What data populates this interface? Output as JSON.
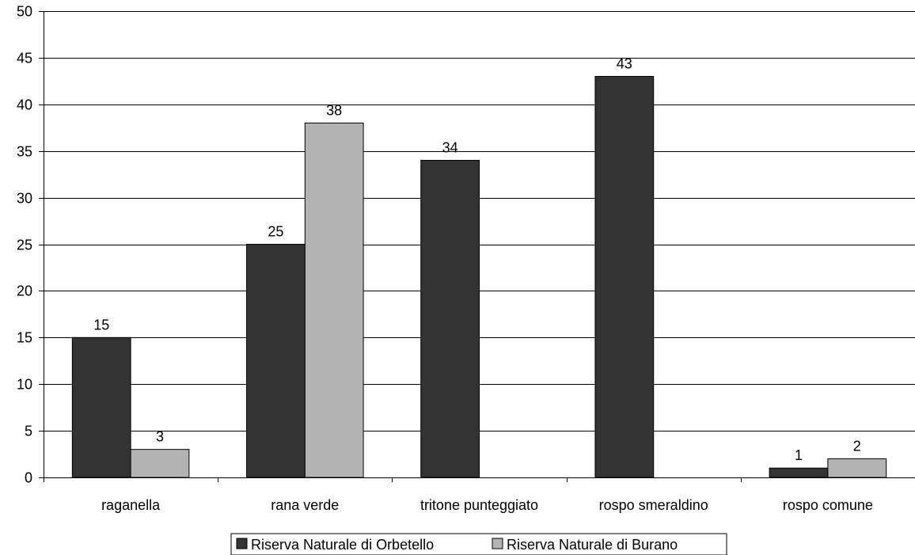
{
  "chart_data": {
    "type": "bar",
    "title": "",
    "xlabel": "",
    "ylabel": "",
    "categories": [
      "raganella",
      "rana verde",
      "tritone punteggiato",
      "rospo smeraldino",
      "rospo comune"
    ],
    "series": [
      {
        "name": "Riserva Naturale di Orbetello",
        "color": "#333333",
        "values": [
          15,
          25,
          34,
          43,
          1
        ],
        "labels": [
          "15",
          "25",
          "34",
          "43",
          "1"
        ]
      },
      {
        "name": "Riserva Naturale di Burano",
        "color": "#b3b3b3",
        "values": [
          3,
          38,
          null,
          null,
          2
        ],
        "labels": [
          "3",
          "38",
          "",
          "",
          "2"
        ]
      }
    ],
    "ylim": [
      0,
      50
    ],
    "yticks": [
      0,
      5,
      10,
      15,
      20,
      25,
      30,
      35,
      40,
      45,
      50
    ],
    "ytick_labels": [
      "0",
      "5",
      "10",
      "15",
      "20",
      "25",
      "30",
      "35",
      "40",
      "45",
      "50"
    ],
    "grid": true,
    "legend_position": "bottom"
  }
}
